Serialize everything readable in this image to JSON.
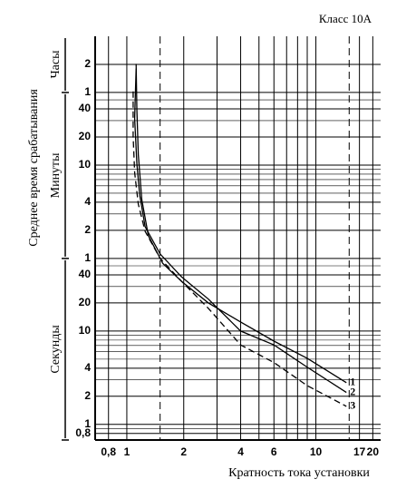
{
  "chart_data": {
    "type": "line",
    "title": "Класс 10А",
    "x_label": "Кратность тока установки",
    "y_label": "Среднее время срабатывания",
    "log_x": true,
    "log_y": true,
    "grid": true,
    "xlim": [
      0.68,
      22
    ],
    "ylim": [
      0.68,
      14400
    ],
    "xticks": [
      {
        "value": 0.8,
        "label": "0,8"
      },
      1,
      2,
      4,
      6,
      10,
      17,
      20
    ],
    "x_gridlines": [
      3,
      5,
      7,
      8,
      9
    ],
    "x_dashed_lines": [
      1.5,
      15
    ],
    "yticks": [
      {
        "value": 0.8,
        "label": "0,8"
      },
      1,
      2,
      4,
      10,
      20,
      40,
      {
        "value": 60,
        "label": "1"
      },
      {
        "value": 120,
        "label": "2"
      },
      {
        "value": 240,
        "label": "4"
      },
      {
        "value": 600,
        "label": "10"
      },
      {
        "value": 1200,
        "label": "20"
      },
      {
        "value": 2400,
        "label": "40"
      },
      {
        "value": 3600,
        "label": "1"
      },
      {
        "value": 7200,
        "label": "2"
      }
    ],
    "y_gridlines": [
      0.9,
      3,
      5,
      6,
      7,
      8,
      9,
      30,
      50,
      180,
      300,
      360,
      420,
      480,
      540,
      1800,
      3000
    ],
    "sections": [
      {
        "label": "Часы",
        "range": [
          3600,
          14400
        ]
      },
      {
        "label": "Минуты",
        "range": [
          60,
          3600
        ]
      },
      {
        "label": "Секунды",
        "range": [
          0.68,
          60
        ]
      }
    ],
    "series": [
      {
        "name": "1",
        "color": "#000000",
        "dashed": false,
        "x": [
          1.12,
          1.13,
          1.15,
          1.2,
          1.3,
          1.55,
          1.95,
          2.7,
          4,
          6,
          9,
          14.5
        ],
        "values": [
          7300,
          2400,
          780,
          256,
          105,
          53,
          34,
          20,
          12.5,
          7.8,
          5.1,
          2.8
        ]
      },
      {
        "name": "2",
        "color": "#000000",
        "dashed": false,
        "x": [
          1.12,
          1.1,
          1.13,
          1.17,
          1.25,
          1.5,
          1.95,
          2.7,
          4,
          6,
          9,
          14.5
        ],
        "values": [
          6500,
          1900,
          625,
          286,
          131,
          67,
          38,
          22,
          10,
          7.1,
          4.1,
          2.2
        ]
      },
      {
        "name": "3",
        "color": "#000000",
        "dashed": true,
        "x": [
          1.08,
          1.08,
          1.1,
          1.15,
          1.25,
          1.5,
          1.95,
          2.7,
          4,
          6,
          9,
          14.5
        ],
        "values": [
          3700,
          1220,
          500,
          229,
          117,
          60,
          34,
          17.5,
          7.1,
          4.6,
          2.6,
          1.56
        ]
      }
    ]
  }
}
